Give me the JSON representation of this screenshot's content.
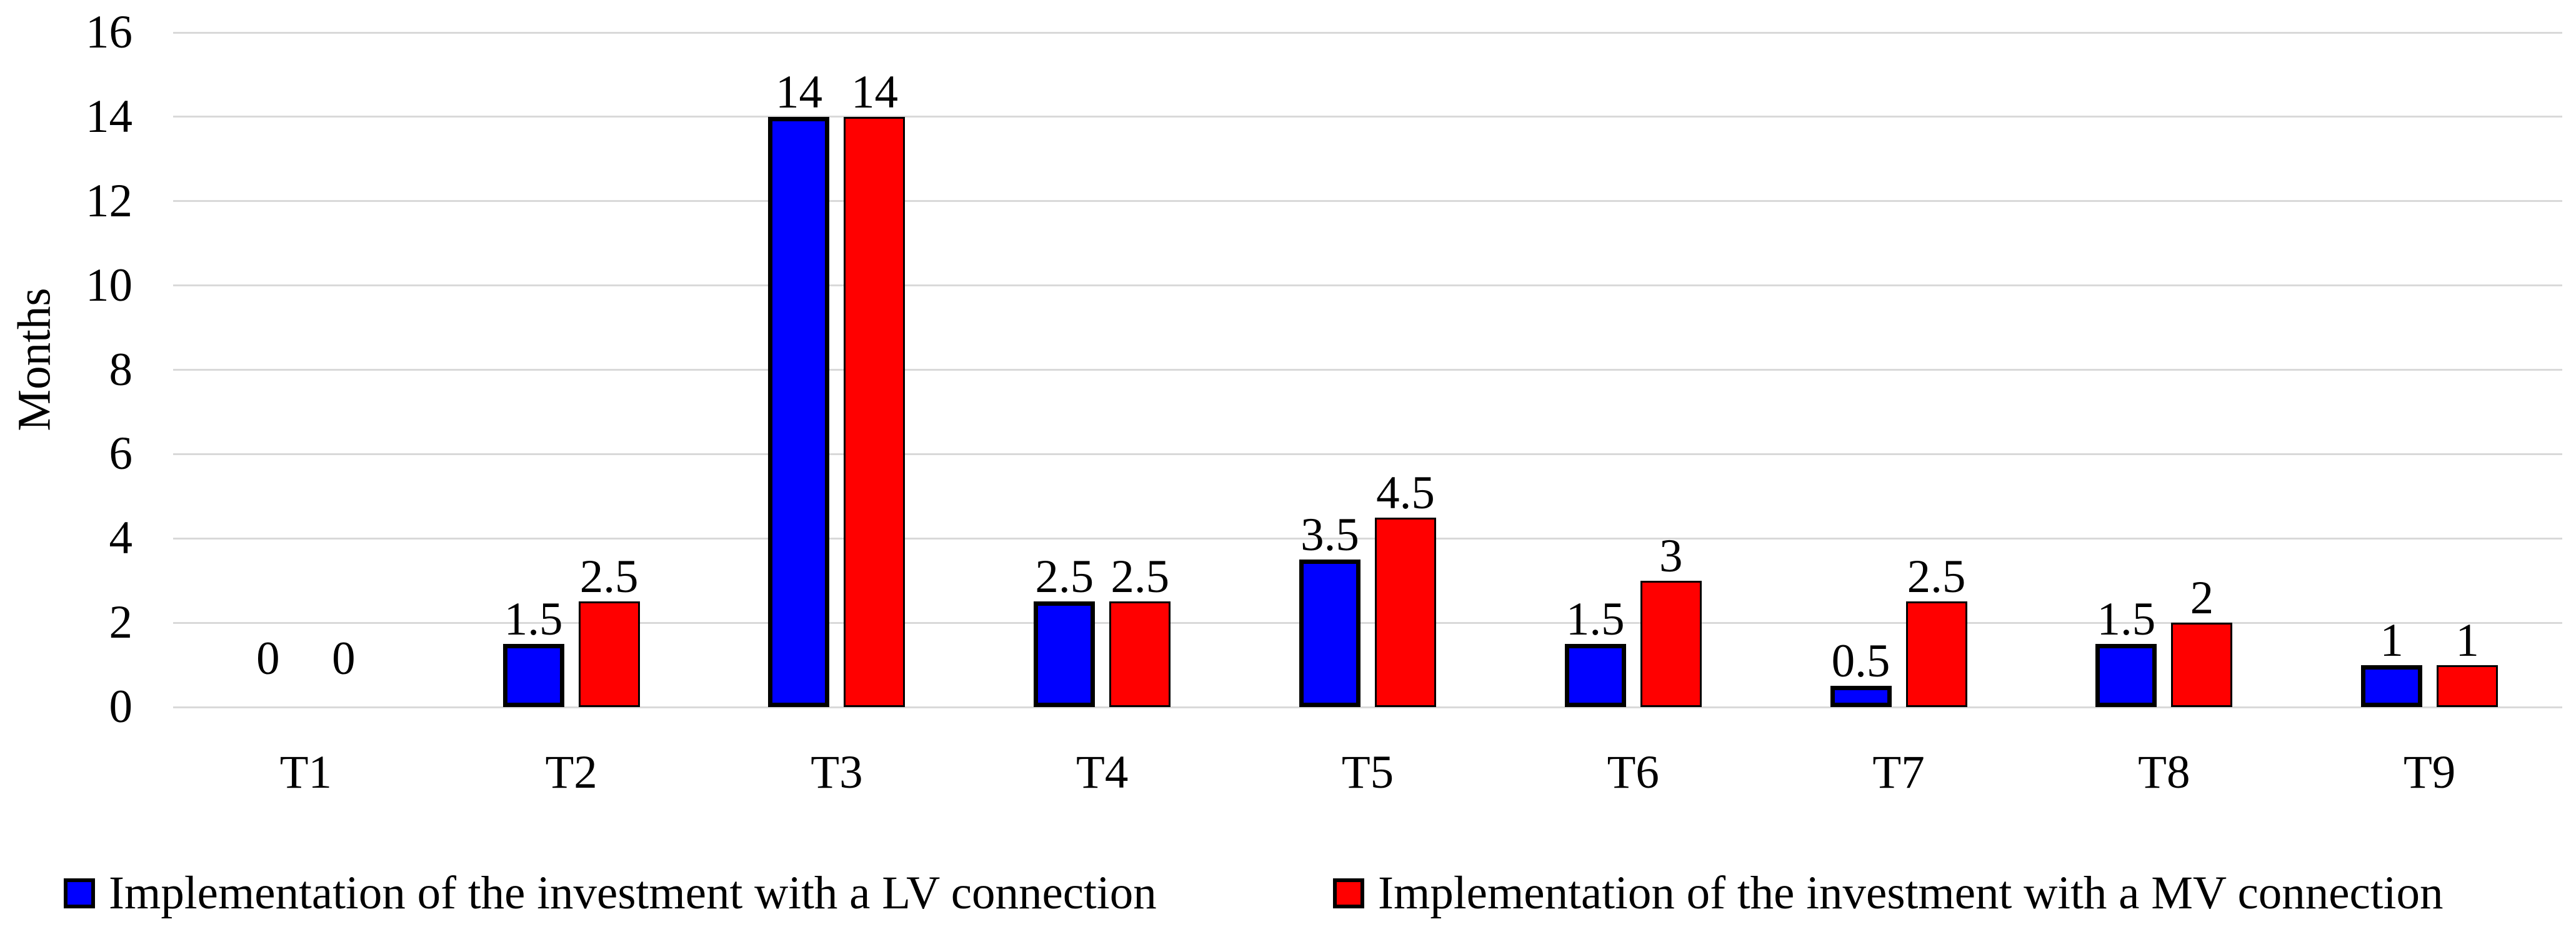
{
  "chart_data": {
    "type": "bar",
    "categories": [
      "T1",
      "T2",
      "T3",
      "T4",
      "T5",
      "T6",
      "T7",
      "T8",
      "T9"
    ],
    "series": [
      {
        "name": "Implementation of the investment with a LV connection",
        "color": "#0000ff",
        "values": [
          0,
          1.5,
          14,
          2.5,
          3.5,
          1.5,
          0.5,
          1.5,
          1
        ]
      },
      {
        "name": "Implementation of the investment with a MV connection",
        "color": "#ff0000",
        "values": [
          0,
          2.5,
          14,
          2.5,
          4.5,
          3,
          2.5,
          2,
          1
        ]
      }
    ],
    "ylabel": "Months",
    "xlabel": "",
    "title": "",
    "ylim": [
      0,
      16
    ],
    "yticks": [
      0,
      2,
      4,
      6,
      8,
      10,
      12,
      14,
      16
    ],
    "grid": true,
    "gridline_color": "#d9d9d9",
    "data_labels": true,
    "legend_position": "bottom"
  }
}
